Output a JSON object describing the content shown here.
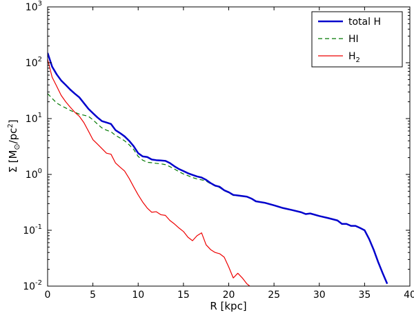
{
  "chart_data": {
    "type": "line",
    "xlabel": "R [kpc]",
    "ylabel_parts": [
      "Σ [M",
      "⊙",
      "/pc",
      "2",
      "]"
    ],
    "xlim": [
      0,
      40
    ],
    "ylim": [
      0.01,
      1000
    ],
    "yscale": "log",
    "x_ticks": [
      0,
      5,
      10,
      15,
      20,
      25,
      30,
      35,
      40
    ],
    "x_tick_labels": [
      "0",
      "5",
      "10",
      "15",
      "20",
      "25",
      "30",
      "35",
      "40"
    ],
    "y_ticks": [
      0.01,
      0.1,
      1,
      10,
      100,
      1000
    ],
    "y_tick_labels": [
      {
        "base": "10",
        "exp": "-2"
      },
      {
        "base": "10",
        "exp": "-1"
      },
      {
        "base": "10",
        "exp": "0"
      },
      {
        "base": "10",
        "exp": "1"
      },
      {
        "base": "10",
        "exp": "2"
      },
      {
        "base": "10",
        "exp": "3"
      }
    ],
    "grid": false,
    "legend_position": "top-right",
    "series": [
      {
        "name": "total H",
        "color": "#0000cc",
        "dash": "solid",
        "x": [
          0,
          0.5,
          1,
          1.5,
          2,
          2.5,
          3,
          3.5,
          4,
          4.5,
          5,
          5.5,
          6,
          6.5,
          7,
          7.5,
          8,
          8.5,
          9,
          9.5,
          10,
          10.5,
          11,
          11.5,
          12,
          12.5,
          13,
          13.5,
          14,
          14.5,
          15,
          15.5,
          16,
          16.5,
          17,
          17.5,
          18,
          18.5,
          19,
          19.5,
          20,
          20.5,
          21,
          21.5,
          22,
          22.5,
          23,
          24,
          25,
          26,
          27,
          28,
          28.5,
          29,
          30,
          31,
          32,
          32.5,
          33,
          33.5,
          34,
          34.5,
          35,
          35.5,
          36,
          36.5,
          37,
          37.5
        ],
        "y": [
          150,
          85,
          62,
          48,
          40,
          33,
          28,
          24,
          19,
          15,
          12.5,
          10.5,
          9,
          8.5,
          8,
          6.2,
          5.5,
          4.8,
          4,
          3.2,
          2.4,
          2.1,
          2.05,
          1.85,
          1.8,
          1.78,
          1.75,
          1.6,
          1.4,
          1.25,
          1.15,
          1.05,
          0.98,
          0.92,
          0.88,
          0.8,
          0.7,
          0.63,
          0.6,
          0.52,
          0.48,
          0.43,
          0.42,
          0.41,
          0.4,
          0.37,
          0.33,
          0.31,
          0.28,
          0.25,
          0.23,
          0.21,
          0.195,
          0.2,
          0.18,
          0.165,
          0.15,
          0.13,
          0.13,
          0.12,
          0.12,
          0.11,
          0.1,
          0.07,
          0.045,
          0.027,
          0.017,
          0.011
        ]
      },
      {
        "name": "HI",
        "color": "#007700",
        "dash": "dashed",
        "x": [
          0,
          0.5,
          1,
          1.5,
          2,
          2.5,
          3,
          3.5,
          4,
          4.5,
          5,
          5.5,
          6,
          6.5,
          7,
          7.5,
          8,
          8.5,
          9,
          9.5,
          10,
          10.5,
          11,
          11.5,
          12,
          12.5,
          13,
          13.5,
          14,
          14.5,
          15,
          15.5,
          16,
          16.5,
          17,
          17.5,
          18,
          18.5,
          19,
          19.5,
          20,
          20.5,
          21,
          21.5,
          22,
          22.5,
          23,
          24,
          25,
          26,
          27,
          28,
          28.5,
          29,
          30,
          31,
          32,
          32.5,
          33,
          33.5,
          34,
          34.5,
          35,
          35.5,
          36,
          36.5,
          37,
          37.5
        ],
        "y": [
          28,
          23,
          19,
          17,
          15.5,
          14,
          13,
          12,
          11.5,
          11,
          9.5,
          8,
          6.8,
          6.2,
          5.8,
          5,
          4.5,
          4,
          3.4,
          2.8,
          2.1,
          1.8,
          1.65,
          1.62,
          1.58,
          1.55,
          1.5,
          1.38,
          1.25,
          1.12,
          1.02,
          0.95,
          0.88,
          0.83,
          0.8,
          0.76,
          0.68,
          0.62,
          0.58,
          0.51,
          0.47,
          0.42,
          0.415,
          0.405,
          0.4,
          0.37,
          0.33,
          0.31,
          0.28,
          0.25,
          0.23,
          0.21,
          0.195,
          0.2,
          0.18,
          0.165,
          0.15,
          0.13,
          0.13,
          0.12,
          0.12,
          0.11,
          0.1,
          0.07,
          0.045,
          0.027,
          0.017,
          0.011
        ]
      },
      {
        "name": "H",
        "name_sub": "2",
        "color": "#ee0000",
        "dash": "solid",
        "x": [
          0,
          0.5,
          1,
          1.5,
          2,
          2.5,
          3,
          3.5,
          4,
          4.5,
          5,
          5.5,
          6,
          6.5,
          7,
          7.5,
          8,
          8.5,
          9,
          9.5,
          10,
          10.5,
          11,
          11.5,
          12,
          12.5,
          13,
          13.5,
          14,
          14.5,
          15,
          15.5,
          16,
          16.5,
          17,
          17.5,
          18,
          18.5,
          19,
          19.5,
          20,
          20.5,
          21,
          21.5,
          22,
          22.5
        ],
        "y": [
          115,
          55,
          38,
          26,
          20,
          16,
          13,
          11,
          8.5,
          6,
          4.2,
          3.5,
          2.9,
          2.4,
          2.3,
          1.6,
          1.35,
          1.15,
          0.85,
          0.6,
          0.43,
          0.32,
          0.25,
          0.21,
          0.215,
          0.19,
          0.185,
          0.15,
          0.13,
          0.11,
          0.095,
          0.075,
          0.065,
          0.08,
          0.09,
          0.055,
          0.045,
          0.04,
          0.038,
          0.033,
          0.022,
          0.014,
          0.017,
          0.014,
          0.011,
          0.0095
        ]
      }
    ]
  }
}
